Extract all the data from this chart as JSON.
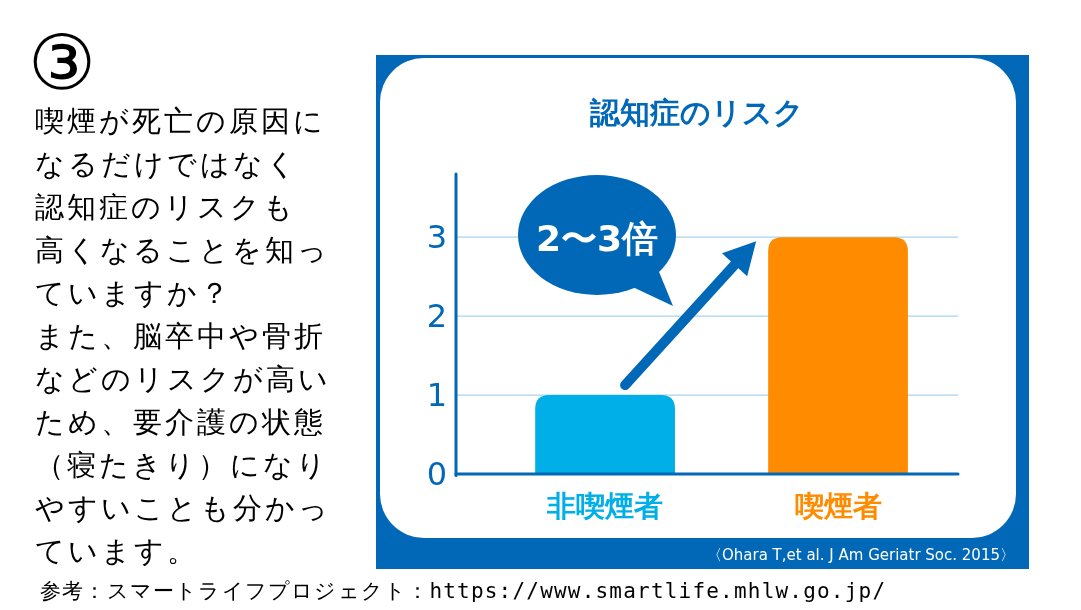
{
  "chart_data": {
    "type": "bar",
    "title": "認知症のリスク",
    "categories": [
      "非喫煙者",
      "喫煙者"
    ],
    "values": [
      1,
      3
    ],
    "colors": [
      "#00aee8",
      "#ff8c00"
    ],
    "ylim": [
      0,
      3.8
    ],
    "yticks": [
      0,
      1,
      2,
      3
    ],
    "grid": "y",
    "annotations": [
      "③",
      "喫煙が死亡の原因になるだけではなく",
      "認知症のリスクも",
      "高くなることを知っていますか？",
      "また、脳卒中や骨折などのリスクが高いため、要介護の状態（寝たきり）になりやすいことも分かっています。",
      "2〜3倍",
      "〈Ohara T,et al. J Am Geriatr Soc. 2015〉",
      "参考：スマートライフプロジェクト：https://www.smartlife.mhlw.go.jp/"
    ]
  }
}
